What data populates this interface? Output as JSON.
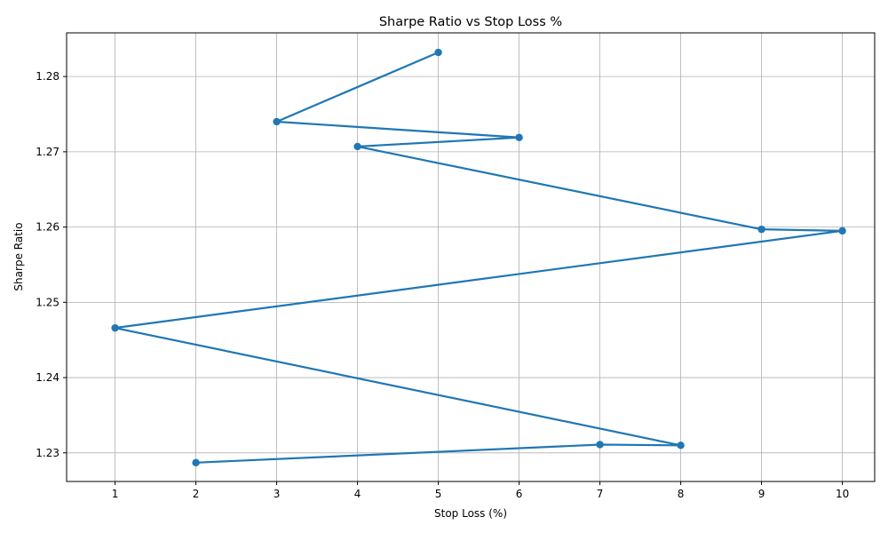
{
  "chart_data": {
    "type": "line",
    "title": "Sharpe Ratio vs Stop Loss %",
    "xlabel": "Stop Loss (%)",
    "ylabel": "Sharpe Ratio",
    "xlim": [
      0.4,
      10.4
    ],
    "ylim": [
      1.2262,
      1.2858
    ],
    "xticks": [
      1,
      2,
      3,
      4,
      5,
      6,
      7,
      8,
      9,
      10
    ],
    "yticks": [
      1.23,
      1.24,
      1.25,
      1.26,
      1.27,
      1.28
    ],
    "ytick_labels": [
      "1.23",
      "1.24",
      "1.25",
      "1.26",
      "1.27",
      "1.28"
    ],
    "grid": true,
    "series": [
      {
        "color": "#1f77b4",
        "marker": "circle",
        "points": [
          {
            "x": 5,
            "y": 1.2832
          },
          {
            "x": 3,
            "y": 1.274
          },
          {
            "x": 6,
            "y": 1.2719
          },
          {
            "x": 4,
            "y": 1.2707
          },
          {
            "x": 9,
            "y": 1.2597
          },
          {
            "x": 10,
            "y": 1.2595
          },
          {
            "x": 1,
            "y": 1.2466
          },
          {
            "x": 8,
            "y": 1.231
          },
          {
            "x": 7,
            "y": 1.2311
          },
          {
            "x": 2,
            "y": 1.2287
          }
        ]
      }
    ]
  }
}
